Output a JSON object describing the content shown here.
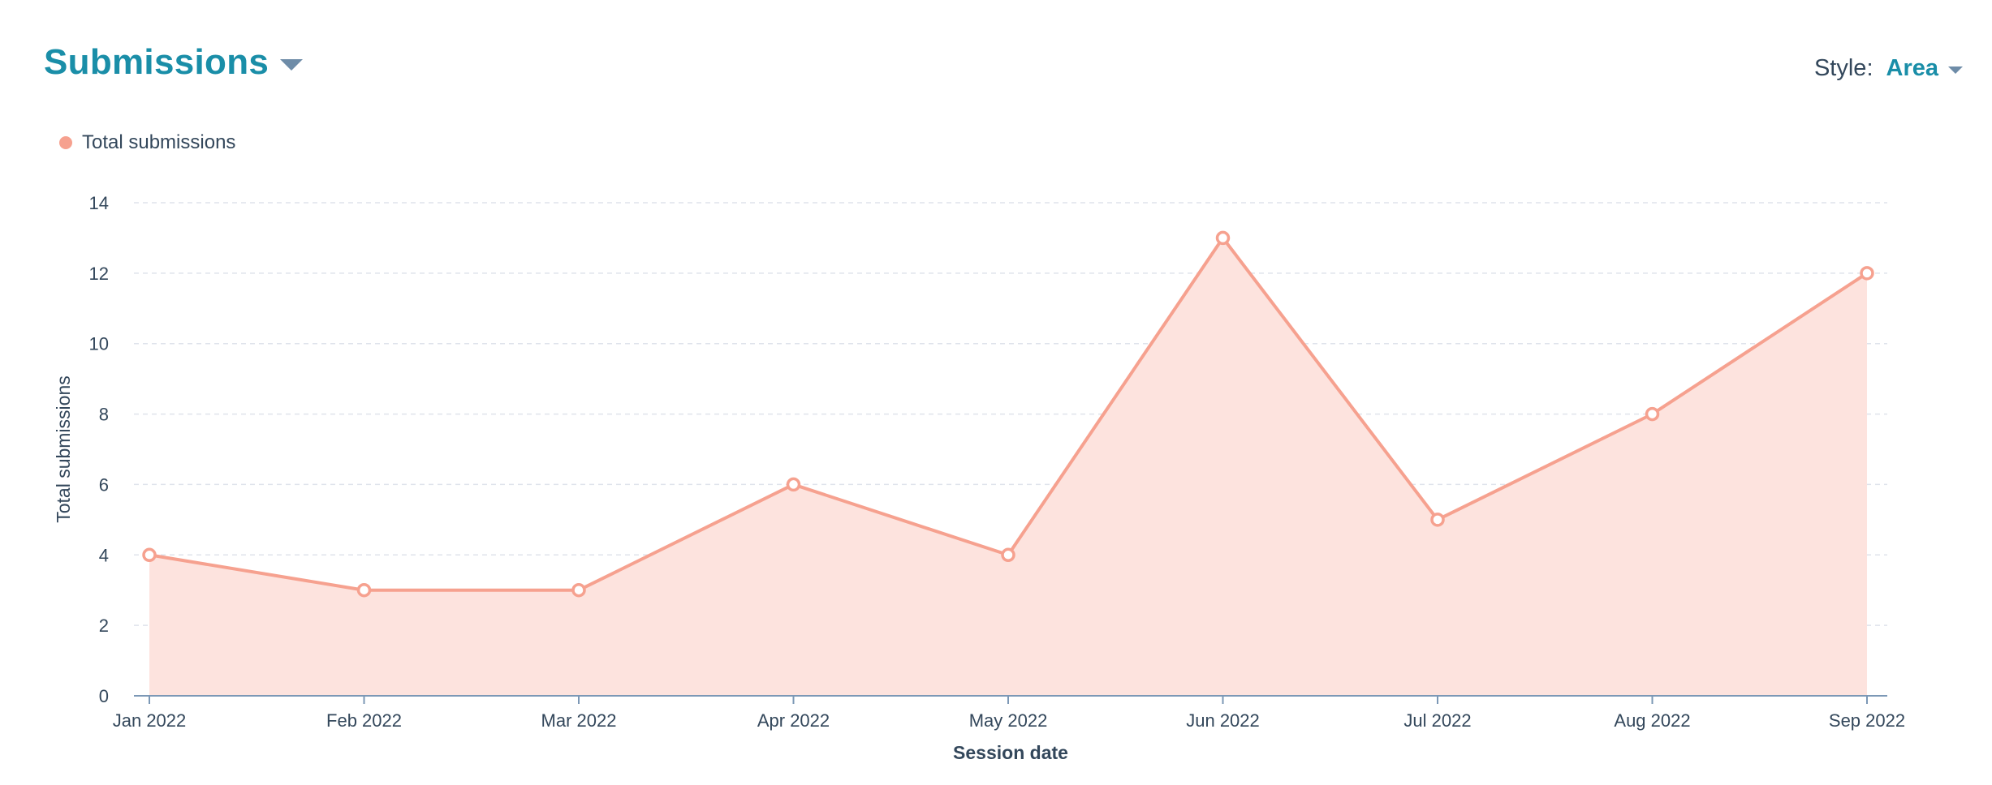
{
  "header": {
    "title": "Submissions"
  },
  "style_control": {
    "label": "Style:",
    "value": "Area"
  },
  "colors": {
    "accent": "#1a8ea8",
    "series": "#f6a18f",
    "fill": "#fde3de",
    "axis": "#7c98b6",
    "grid": "#dfe3eb"
  },
  "chart_data": {
    "type": "area",
    "categories": [
      "Jan 2022",
      "Feb 2022",
      "Mar 2022",
      "Apr 2022",
      "May 2022",
      "Jun 2022",
      "Jul 2022",
      "Aug 2022",
      "Sep 2022"
    ],
    "series": [
      {
        "name": "Total submissions",
        "values": [
          4,
          3,
          3,
          6,
          4,
          13,
          5,
          8,
          12
        ]
      }
    ],
    "xlabel": "Session date",
    "ylabel": "Total submissions",
    "ylim": [
      0,
      14
    ],
    "yticks": [
      "0",
      "2",
      "4",
      "6",
      "8",
      "10",
      "12",
      "14"
    ],
    "grid": true,
    "legend": "top-left"
  }
}
